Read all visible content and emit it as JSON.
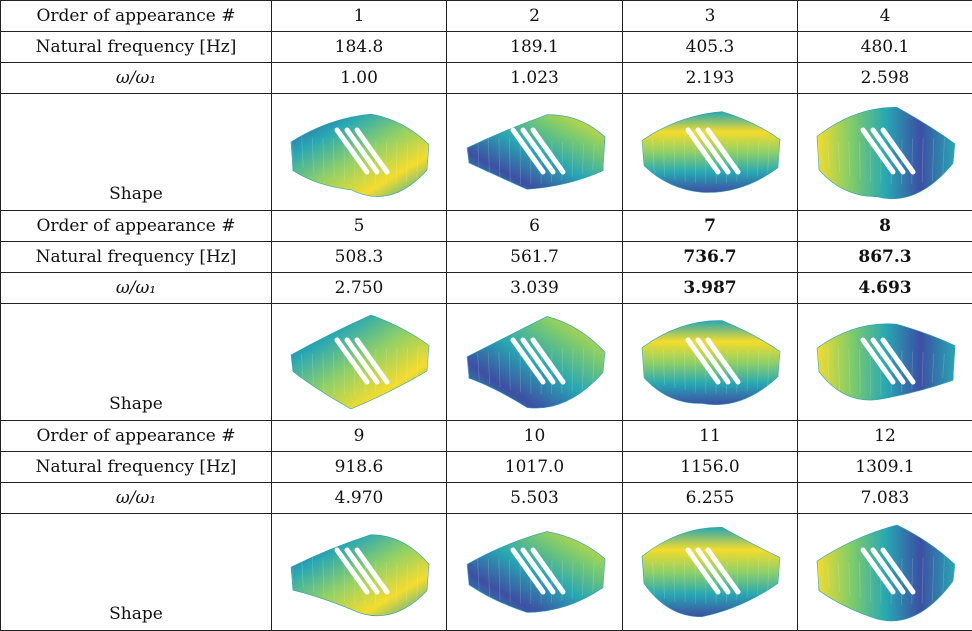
{
  "row_labels": [
    "Order of appearance #",
    "Natural frequency [Hz]",
    "ω/ω₁",
    "Shape"
  ],
  "blocks": [
    {
      "order": [
        "1",
        "2",
        "3",
        "4"
      ],
      "frequency": [
        "184.8",
        "189.1",
        "405.3",
        "480.1"
      ],
      "ratio": [
        "1.00",
        "1.023",
        "2.193",
        "2.598"
      ]
    },
    {
      "order": [
        "5",
        "6",
        "7",
        "8"
      ],
      "frequency": [
        "508.3",
        "561.7",
        "736.7",
        "867.3"
      ],
      "ratio": [
        "2.750",
        "3.039",
        "3.987",
        "4.693"
      ]
    },
    {
      "order": [
        "9",
        "10",
        "11",
        "12"
      ],
      "frequency": [
        "918.6",
        "1017.0",
        "1156.0",
        "1309.1"
      ],
      "ratio": [
        "4.970",
        "5.503",
        "6.255",
        "7.083"
      ]
    }
  ]
}
